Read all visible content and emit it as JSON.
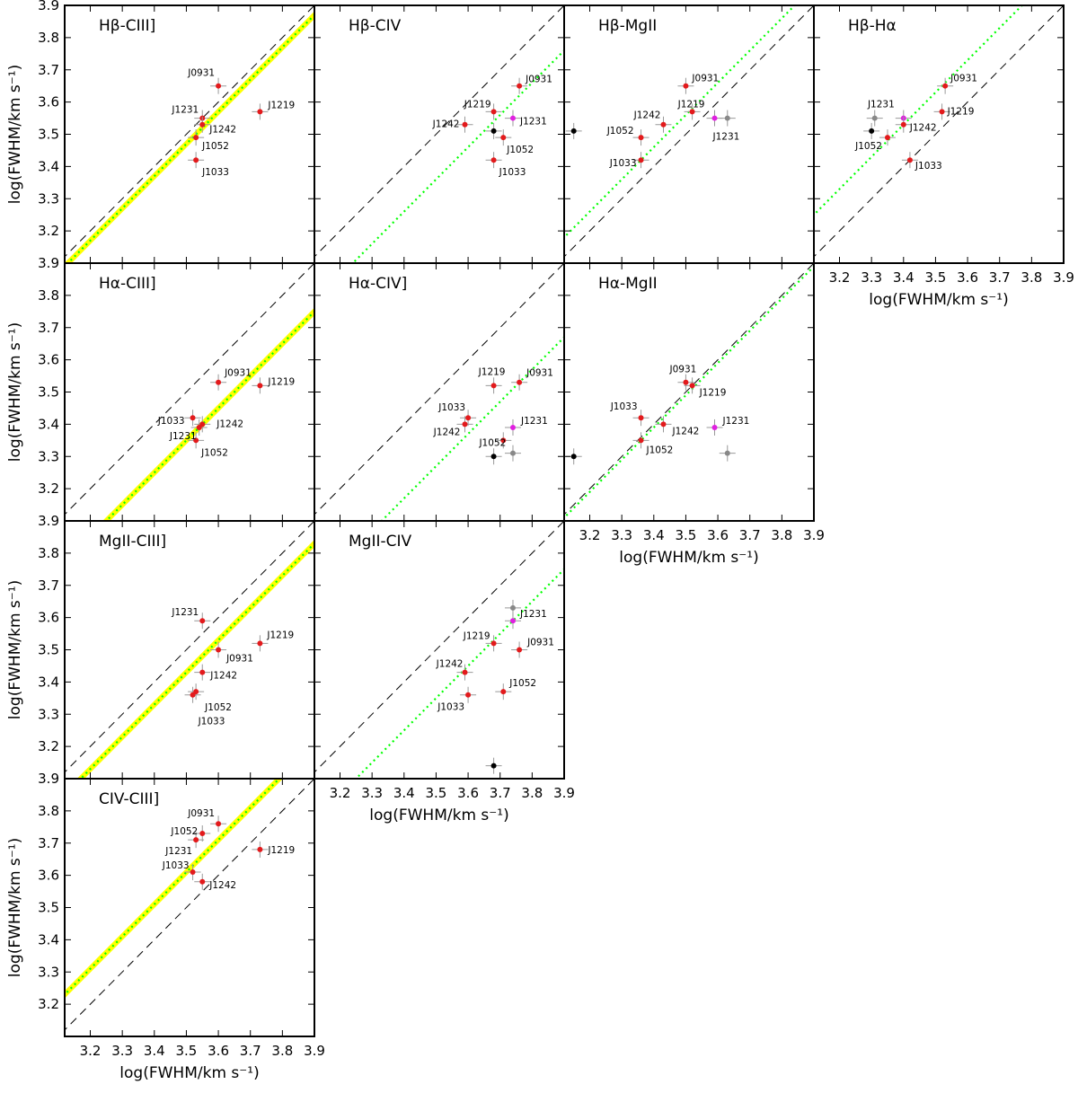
{
  "figure": {
    "x_axis_label": "log(FWHM/km s⁻¹)",
    "y_axis_label": "log(FWHM/km s⁻¹)",
    "tick_labels": [
      "3.2",
      "3.3",
      "3.4",
      "3.5",
      "3.6",
      "3.7",
      "3.8",
      "3.9"
    ],
    "colors": {
      "main_point": "#e31a1c",
      "magenta_point": "#e020e0",
      "grey_point": "#888888",
      "black_point": "#000000",
      "fit_line": "#00ff00",
      "fit_band": "#ffff00",
      "one_to_one_line": "#000000"
    }
  },
  "chart_data": [
    {
      "type": "scatter",
      "title": "Hβ-CIII]",
      "xlim": [
        3.12,
        3.9
      ],
      "ylim": [
        3.1,
        3.9
      ],
      "x_ticks_shown": false,
      "y_ticks_shown": true,
      "fit": {
        "slope": 1,
        "intercept": -0.03,
        "band": true
      },
      "points": [
        {
          "name": "J0931",
          "x": 3.6,
          "y": 3.65,
          "color": "red"
        },
        {
          "name": "J1231",
          "x": 3.55,
          "y": 3.55,
          "color": "red"
        },
        {
          "name": "J1242",
          "x": 3.55,
          "y": 3.53,
          "color": "red"
        },
        {
          "name": "J1052",
          "x": 3.53,
          "y": 3.49,
          "color": "red"
        },
        {
          "name": "J1033",
          "x": 3.53,
          "y": 3.42,
          "color": "red"
        },
        {
          "name": "J1219",
          "x": 3.73,
          "y": 3.57,
          "color": "red"
        }
      ]
    },
    {
      "type": "scatter",
      "title": "Hβ-CIV",
      "xlim": [
        3.12,
        3.9
      ],
      "ylim": [
        3.1,
        3.9
      ],
      "x_ticks_shown": false,
      "y_ticks_shown": false,
      "fit": {
        "slope": 1,
        "intercept": -0.14,
        "band": false
      },
      "points": [
        {
          "name": "J0931",
          "x": 3.76,
          "y": 3.65,
          "color": "red"
        },
        {
          "name": "J1219",
          "x": 3.68,
          "y": 3.57,
          "color": "red"
        },
        {
          "name": "J1242",
          "x": 3.59,
          "y": 3.53,
          "color": "red"
        },
        {
          "name": "J1231",
          "x": 3.74,
          "y": 3.55,
          "color": "magenta"
        },
        {
          "name": "J1052",
          "x": 3.71,
          "y": 3.49,
          "color": "red"
        },
        {
          "name": "J1033",
          "x": 3.68,
          "y": 3.42,
          "color": "red"
        },
        {
          "name": "",
          "x": 3.68,
          "y": 3.51,
          "color": "black"
        }
      ]
    },
    {
      "type": "scatter",
      "title": "Hβ-MgII",
      "xlim": [
        3.12,
        3.9
      ],
      "ylim": [
        3.1,
        3.9
      ],
      "x_ticks_shown": false,
      "y_ticks_shown": false,
      "fit": {
        "slope": 1,
        "intercept": 0.06,
        "band": false
      },
      "points": [
        {
          "name": "J0931",
          "x": 3.5,
          "y": 3.65,
          "color": "red"
        },
        {
          "name": "J1219",
          "x": 3.52,
          "y": 3.57,
          "color": "red"
        },
        {
          "name": "J1242",
          "x": 3.43,
          "y": 3.53,
          "color": "red"
        },
        {
          "name": "J1052",
          "x": 3.36,
          "y": 3.49,
          "color": "red"
        },
        {
          "name": "J1033",
          "x": 3.36,
          "y": 3.42,
          "color": "red"
        },
        {
          "name": "J1231",
          "x": 3.59,
          "y": 3.55,
          "color": "magenta"
        },
        {
          "name": "",
          "x": 3.63,
          "y": 3.55,
          "color": "grey"
        },
        {
          "name": "",
          "x": 3.15,
          "y": 3.51,
          "color": "black"
        }
      ]
    },
    {
      "type": "scatter",
      "title": "Hβ-Hα",
      "xlim": [
        3.12,
        3.9
      ],
      "ylim": [
        3.1,
        3.9
      ],
      "x_ticks_shown": true,
      "y_ticks_shown": false,
      "fit": {
        "slope": 1,
        "intercept": 0.13,
        "band": false
      },
      "points": [
        {
          "name": "J0931",
          "x": 3.53,
          "y": 3.65,
          "color": "red"
        },
        {
          "name": "J1219",
          "x": 3.52,
          "y": 3.57,
          "color": "red"
        },
        {
          "name": "J1231",
          "x": 3.4,
          "y": 3.55,
          "color": "magenta"
        },
        {
          "name": "",
          "x": 3.31,
          "y": 3.55,
          "color": "grey"
        },
        {
          "name": "J1242",
          "x": 3.4,
          "y": 3.53,
          "color": "red"
        },
        {
          "name": "J1052",
          "x": 3.35,
          "y": 3.49,
          "color": "red"
        },
        {
          "name": "J1033",
          "x": 3.42,
          "y": 3.42,
          "color": "red"
        },
        {
          "name": "",
          "x": 3.3,
          "y": 3.51,
          "color": "black"
        }
      ]
    },
    {
      "type": "scatter",
      "title": "Hα-CIII]",
      "xlim": [
        3.12,
        3.9
      ],
      "ylim": [
        3.1,
        3.9
      ],
      "x_ticks_shown": false,
      "y_ticks_shown": true,
      "fit": {
        "slope": 1,
        "intercept": -0.15,
        "band": true
      },
      "points": [
        {
          "name": "J0931",
          "x": 3.6,
          "y": 3.53,
          "color": "red"
        },
        {
          "name": "J1219",
          "x": 3.73,
          "y": 3.52,
          "color": "red"
        },
        {
          "name": "J1033",
          "x": 3.52,
          "y": 3.42,
          "color": "red"
        },
        {
          "name": "J1242",
          "x": 3.55,
          "y": 3.4,
          "color": "red"
        },
        {
          "name": "J1231",
          "x": 3.54,
          "y": 3.39,
          "color": "red"
        },
        {
          "name": "J1052",
          "x": 3.53,
          "y": 3.35,
          "color": "red"
        }
      ]
    },
    {
      "type": "scatter",
      "title": "Hα-CIV]",
      "xlim": [
        3.12,
        3.9
      ],
      "ylim": [
        3.1,
        3.9
      ],
      "x_ticks_shown": false,
      "y_ticks_shown": false,
      "fit": {
        "slope": 1,
        "intercept": -0.23,
        "band": false
      },
      "points": [
        {
          "name": "J1219",
          "x": 3.68,
          "y": 3.52,
          "color": "red"
        },
        {
          "name": "J0931",
          "x": 3.76,
          "y": 3.53,
          "color": "red"
        },
        {
          "name": "J1033",
          "x": 3.6,
          "y": 3.42,
          "color": "red"
        },
        {
          "name": "J1242",
          "x": 3.59,
          "y": 3.4,
          "color": "red"
        },
        {
          "name": "J1231",
          "x": 3.74,
          "y": 3.39,
          "color": "magenta"
        },
        {
          "name": "J1052",
          "x": 3.71,
          "y": 3.35,
          "color": "red"
        },
        {
          "name": "",
          "x": 3.74,
          "y": 3.31,
          "color": "grey"
        },
        {
          "name": "",
          "x": 3.68,
          "y": 3.3,
          "color": "black"
        }
      ]
    },
    {
      "type": "scatter",
      "title": "Hα-MgII",
      "xlim": [
        3.12,
        3.9
      ],
      "ylim": [
        3.1,
        3.9
      ],
      "x_ticks_shown": true,
      "y_ticks_shown": false,
      "fit": {
        "slope": 1,
        "intercept": -0.01,
        "band": false
      },
      "points": [
        {
          "name": "J0931",
          "x": 3.5,
          "y": 3.53,
          "color": "red"
        },
        {
          "name": "J1219",
          "x": 3.52,
          "y": 3.52,
          "color": "red"
        },
        {
          "name": "J1033",
          "x": 3.36,
          "y": 3.42,
          "color": "red"
        },
        {
          "name": "J1242",
          "x": 3.43,
          "y": 3.4,
          "color": "red"
        },
        {
          "name": "J1052",
          "x": 3.36,
          "y": 3.35,
          "color": "red"
        },
        {
          "name": "J1231",
          "x": 3.59,
          "y": 3.39,
          "color": "magenta"
        },
        {
          "name": "",
          "x": 3.63,
          "y": 3.31,
          "color": "grey"
        },
        {
          "name": "",
          "x": 3.15,
          "y": 3.3,
          "color": "black"
        }
      ]
    },
    {
      "type": "scatter",
      "title": "MgII-CIII]",
      "xlim": [
        3.12,
        3.9
      ],
      "ylim": [
        3.1,
        3.9
      ],
      "x_ticks_shown": false,
      "y_ticks_shown": true,
      "fit": {
        "slope": 1,
        "intercept": -0.07,
        "band": true
      },
      "points": [
        {
          "name": "J1231",
          "x": 3.55,
          "y": 3.59,
          "color": "red"
        },
        {
          "name": "J1219",
          "x": 3.73,
          "y": 3.52,
          "color": "red"
        },
        {
          "name": "J0931",
          "x": 3.6,
          "y": 3.5,
          "color": "red"
        },
        {
          "name": "J1242",
          "x": 3.55,
          "y": 3.43,
          "color": "red"
        },
        {
          "name": "J1052",
          "x": 3.53,
          "y": 3.37,
          "color": "red"
        },
        {
          "name": "J1033",
          "x": 3.52,
          "y": 3.36,
          "color": "red"
        }
      ]
    },
    {
      "type": "scatter",
      "title": "MgII-CIV",
      "xlim": [
        3.12,
        3.9
      ],
      "ylim": [
        3.1,
        3.9
      ],
      "x_ticks_shown": true,
      "y_ticks_shown": false,
      "fit": {
        "slope": 1,
        "intercept": -0.15,
        "band": false
      },
      "points": [
        {
          "name": "J1231",
          "x": 3.74,
          "y": 3.59,
          "color": "magenta"
        },
        {
          "name": "",
          "x": 3.74,
          "y": 3.63,
          "color": "grey"
        },
        {
          "name": "J1219",
          "x": 3.68,
          "y": 3.52,
          "color": "red"
        },
        {
          "name": "J0931",
          "x": 3.76,
          "y": 3.5,
          "color": "red"
        },
        {
          "name": "J1242",
          "x": 3.59,
          "y": 3.43,
          "color": "red"
        },
        {
          "name": "J1052",
          "x": 3.71,
          "y": 3.37,
          "color": "red"
        },
        {
          "name": "J1033",
          "x": 3.6,
          "y": 3.36,
          "color": "red"
        },
        {
          "name": "",
          "x": 3.68,
          "y": 3.14,
          "color": "black"
        }
      ]
    },
    {
      "type": "scatter",
      "title": "CIV-CIII]",
      "xlim": [
        3.12,
        3.9
      ],
      "ylim": [
        3.1,
        3.9
      ],
      "x_ticks_shown": true,
      "y_ticks_shown": true,
      "fit": {
        "slope": 1,
        "intercept": 0.11,
        "band": true
      },
      "points": [
        {
          "name": "J0931",
          "x": 3.6,
          "y": 3.76,
          "color": "red"
        },
        {
          "name": "J1052",
          "x": 3.55,
          "y": 3.73,
          "color": "red"
        },
        {
          "name": "J1231",
          "x": 3.53,
          "y": 3.71,
          "color": "red"
        },
        {
          "name": "J1219",
          "x": 3.73,
          "y": 3.68,
          "color": "red"
        },
        {
          "name": "J1033",
          "x": 3.52,
          "y": 3.61,
          "color": "red"
        },
        {
          "name": "J1242",
          "x": 3.55,
          "y": 3.58,
          "color": "red"
        }
      ]
    }
  ]
}
